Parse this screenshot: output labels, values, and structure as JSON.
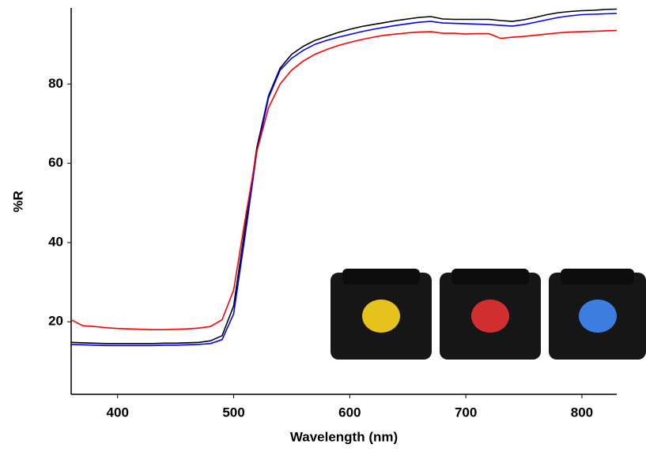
{
  "chart_data": {
    "type": "line",
    "x_label": "Wavelength (nm)",
    "y_label": "%R",
    "x": [
      360,
      370,
      380,
      390,
      400,
      410,
      420,
      430,
      440,
      450,
      460,
      470,
      480,
      490,
      500,
      510,
      520,
      530,
      540,
      550,
      560,
      570,
      580,
      590,
      600,
      610,
      620,
      630,
      640,
      650,
      660,
      670,
      680,
      690,
      700,
      710,
      720,
      730,
      740,
      750,
      760,
      770,
      780,
      790,
      800,
      810,
      820,
      830
    ],
    "series": [
      {
        "color": "#000000",
        "values": [
          14.8,
          14.7,
          14.6,
          14.5,
          14.5,
          14.5,
          14.5,
          14.5,
          14.6,
          14.6,
          14.7,
          14.8,
          15.2,
          16.5,
          24,
          44,
          64,
          77,
          84,
          87.5,
          89.5,
          91,
          92,
          93,
          93.8,
          94.5,
          95,
          95.5,
          96,
          96.4,
          96.8,
          97,
          96.4,
          96.3,
          96.3,
          96.3,
          96.3,
          96,
          95.8,
          96.2,
          96.8,
          97.5,
          98,
          98.3,
          98.5,
          98.6,
          98.8,
          98.9
        ]
      },
      {
        "color": "#0000ff",
        "values": [
          14.3,
          14.2,
          14.1,
          14.0,
          14.0,
          14.0,
          14.0,
          14.0,
          14.1,
          14.1,
          14.2,
          14.3,
          14.5,
          15.5,
          22,
          42,
          63,
          76.5,
          83.5,
          86.5,
          88.5,
          90,
          91,
          91.8,
          92.5,
          93.2,
          93.8,
          94.3,
          94.8,
          95.2,
          95.6,
          95.8,
          95.4,
          95.3,
          95.2,
          95.1,
          95,
          94.8,
          94.6,
          95,
          95.6,
          96.2,
          96.8,
          97.2,
          97.5,
          97.6,
          97.7,
          97.8
        ]
      },
      {
        "color": "#ff0000",
        "values": [
          20.5,
          19,
          18.8,
          18.5,
          18.3,
          18.2,
          18.1,
          18,
          18,
          18.1,
          18.2,
          18.4,
          18.8,
          20.5,
          28,
          46,
          63,
          74,
          80,
          83.5,
          85.8,
          87.5,
          88.7,
          89.7,
          90.5,
          91.2,
          91.8,
          92.3,
          92.6,
          92.9,
          93.1,
          93.2,
          92.8,
          92.8,
          92.6,
          92.7,
          92.7,
          91.5,
          91.8,
          92,
          92.3,
          92.6,
          92.9,
          93.1,
          93.2,
          93.3,
          93.4,
          93.5
        ]
      }
    ],
    "xlim": [
      360,
      830
    ],
    "ylim": [
      1.7,
      99.2
    ],
    "xticks": [
      400,
      500,
      600,
      700,
      800
    ],
    "yticks": [
      20,
      40,
      60,
      80
    ]
  }
}
